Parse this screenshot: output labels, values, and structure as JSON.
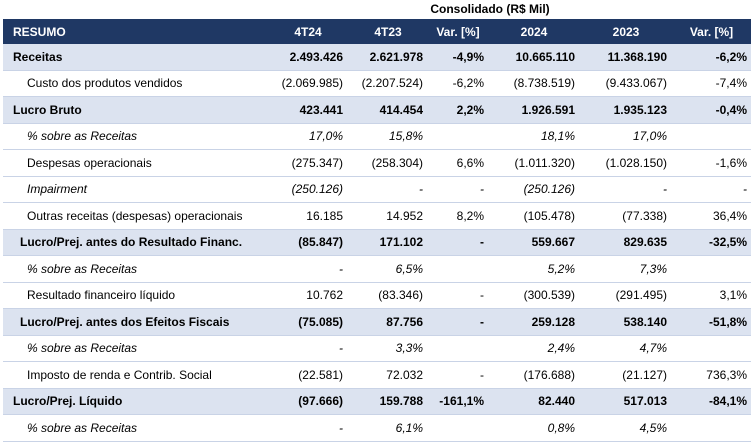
{
  "super_header": "Consolidado (R$ Mil)",
  "headers": [
    "RESUMO",
    "4T24",
    "4T23",
    "Var. [%]",
    "2024",
    "2023",
    "Var. [%]"
  ],
  "rows": [
    {
      "cells": [
        "Receitas",
        "2.493.426",
        "2.621.978",
        "-4,9%",
        "10.665.110",
        "11.368.190",
        "-6,2%"
      ],
      "style": "bold shade"
    },
    {
      "cells": [
        "Custo dos produtos vendidos",
        "(2.069.985)",
        "(2.207.524)",
        "-6,2%",
        "(8.738.519)",
        "(9.433.067)",
        "-7,4%"
      ],
      "style": "indent"
    },
    {
      "cells": [
        "Lucro Bruto",
        "423.441",
        "414.454",
        "2,2%",
        "1.926.591",
        "1.935.123",
        "-0,4%"
      ],
      "style": "bold shade"
    },
    {
      "cells": [
        "% sobre as Receitas",
        "17,0%",
        "15,8%",
        "",
        "18,1%",
        "17,0%",
        ""
      ],
      "style": "italic indent"
    },
    {
      "cells": [
        "Despesas operacionais",
        "(275.347)",
        "(258.304)",
        "6,6%",
        "(1.011.320)",
        "(1.028.150)",
        "-1,6%"
      ],
      "style": "indent"
    },
    {
      "cells": [
        "Impairment",
        "(250.126)",
        "-",
        "-",
        "(250.126)",
        "-",
        "-"
      ],
      "style": "italic indent"
    },
    {
      "cells": [
        "Outras receitas (despesas) operacionais",
        "16.185",
        "14.952",
        "8,2%",
        "(105.478)",
        "(77.338)",
        "36,4%"
      ],
      "style": "indent"
    },
    {
      "cells": [
        "Lucro/Prej. antes do Resultado Financ.",
        "(85.847)",
        "171.102",
        "-",
        "559.667",
        "829.635",
        "-32,5%"
      ],
      "style": "bold shade indent2"
    },
    {
      "cells": [
        "% sobre as Receitas",
        "-",
        "6,5%",
        "",
        "5,2%",
        "7,3%",
        ""
      ],
      "style": "italic indent"
    },
    {
      "cells": [
        "Resultado financeiro líquido",
        "10.762",
        "(83.346)",
        "-",
        "(300.539)",
        "(291.495)",
        "3,1%"
      ],
      "style": "indent"
    },
    {
      "cells": [
        "Lucro/Prej. antes dos Efeitos Fiscais",
        "(75.085)",
        "87.756",
        "-",
        "259.128",
        "538.140",
        "-51,8%"
      ],
      "style": "bold shade indent2"
    },
    {
      "cells": [
        "% sobre as Receitas",
        "-",
        "3,3%",
        "",
        "2,4%",
        "4,7%",
        ""
      ],
      "style": "italic indent"
    },
    {
      "cells": [
        "Imposto de renda e Contrib. Social",
        "(22.581)",
        "72.032",
        "-",
        "(176.688)",
        "(21.127)",
        "736,3%"
      ],
      "style": "indent"
    },
    {
      "cells": [
        "Lucro/Prej. Líquido",
        "(97.666)",
        "159.788",
        "-161,1%",
        "82.440",
        "517.013",
        "-84,1%"
      ],
      "style": "bold shade"
    },
    {
      "cells": [
        "% sobre as Receitas",
        "-",
        "6,1%",
        "",
        "0,8%",
        "4,5%",
        ""
      ],
      "style": "italic indent"
    }
  ]
}
